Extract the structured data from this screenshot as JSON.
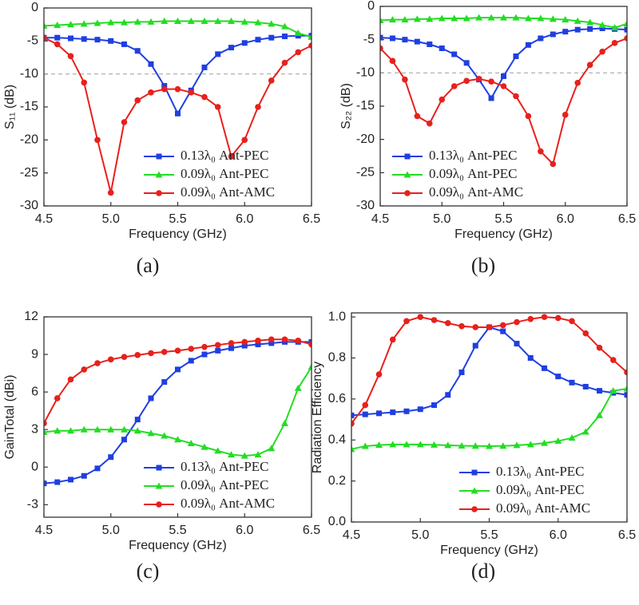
{
  "chart_data": [
    {
      "type": "line",
      "panel_label": "(a)",
      "xlabel": "Frequency (GHz)",
      "ylabel": "S₁₁ (dB)",
      "x": [
        4.5,
        4.6,
        4.7,
        4.8,
        4.9,
        5.0,
        5.1,
        5.2,
        5.3,
        5.4,
        5.5,
        5.6,
        5.7,
        5.8,
        5.9,
        6.0,
        6.1,
        6.2,
        6.3,
        6.4,
        6.5
      ],
      "xlim": [
        4.5,
        6.5
      ],
      "xticks": [
        4.5,
        {
          "value": 5,
          "label": "5.0"
        },
        5.5,
        {
          "value": 6,
          "label": "6.0"
        },
        6.5
      ],
      "ylim": [
        -30,
        0
      ],
      "yticks": [
        -30,
        -25,
        -20,
        -15,
        -10,
        -5,
        0
      ],
      "ref_line": -10,
      "legend": "lower right",
      "series": [
        {
          "name": "0.13λ₀ Ant-PEC",
          "color": "#1f3fe0",
          "marker": "square",
          "values": [
            -4.5,
            -4.5,
            -4.6,
            -4.7,
            -4.8,
            -5.0,
            -5.5,
            -6.5,
            -8.5,
            -11.8,
            -16,
            -12.5,
            -9,
            -7,
            -6,
            -5.3,
            -4.8,
            -4.5,
            -4.3,
            -4.2,
            -4.2
          ]
        },
        {
          "name": "0.09λ₀ Ant-PEC",
          "color": "#22dd22",
          "marker": "triangle",
          "values": [
            -2.7,
            -2.6,
            -2.5,
            -2.4,
            -2.3,
            -2.2,
            -2.2,
            -2.1,
            -2.1,
            -2.0,
            -2.0,
            -2.0,
            -2.0,
            -2.0,
            -2.0,
            -2.1,
            -2.2,
            -2.4,
            -2.8,
            -3.8,
            -4.4
          ]
        },
        {
          "name": "0.09λ₀ Ant-AMC",
          "color": "#e8201c",
          "marker": "circle",
          "values": [
            -4.5,
            -5.5,
            -7.3,
            -11.3,
            -20,
            -28,
            -17.3,
            -14,
            -12.8,
            -12.3,
            -12.3,
            -12.8,
            -13.5,
            -15,
            -22.5,
            -20,
            -15,
            -11,
            -8.3,
            -6.7,
            -5.7
          ]
        }
      ]
    },
    {
      "type": "line",
      "panel_label": "(b)",
      "xlabel": "Frequency (GHz)",
      "ylabel": "S₂₂ (dB)",
      "x": [
        4.5,
        4.6,
        4.7,
        4.8,
        4.9,
        5.0,
        5.1,
        5.2,
        5.3,
        5.4,
        5.5,
        5.6,
        5.7,
        5.8,
        5.9,
        6.0,
        6.1,
        6.2,
        6.3,
        6.4,
        6.5
      ],
      "xlim": [
        4.5,
        6.5
      ],
      "xticks": [
        4.5,
        {
          "value": 5,
          "label": "5.0"
        },
        5.5,
        {
          "value": 6,
          "label": "6.0"
        },
        6.5
      ],
      "ylim": [
        -30,
        0
      ],
      "yticks": [
        -30,
        -25,
        -20,
        -15,
        -10,
        -5,
        0
      ],
      "ref_line": -10,
      "legend": "lower left",
      "series": [
        {
          "name": "0.13λ₀ Ant-PEC",
          "color": "#1f3fe0",
          "marker": "square",
          "values": [
            -4.7,
            -4.8,
            -5.0,
            -5.3,
            -5.7,
            -6.3,
            -7.2,
            -8.5,
            -11,
            -13.8,
            -10.5,
            -7.5,
            -5.8,
            -4.8,
            -4.2,
            -3.8,
            -3.5,
            -3.4,
            -3.3,
            -3.4,
            -3.5
          ]
        },
        {
          "name": "0.09λ₀ Ant-PEC",
          "color": "#22dd22",
          "marker": "triangle",
          "values": [
            -2.1,
            -2.0,
            -2.0,
            -1.9,
            -1.9,
            -1.8,
            -1.8,
            -1.8,
            -1.7,
            -1.7,
            -1.7,
            -1.7,
            -1.8,
            -1.8,
            -1.9,
            -2.0,
            -2.2,
            -2.4,
            -2.8,
            -3.2,
            -2.6
          ]
        },
        {
          "name": "0.09λ₀ Ant-AMC",
          "color": "#e8201c",
          "marker": "circle",
          "values": [
            -6.3,
            -8.2,
            -11,
            -16.5,
            -17.6,
            -14,
            -12,
            -11.2,
            -10.9,
            -11.3,
            -12,
            -13.5,
            -16.5,
            -21.8,
            -23.7,
            -16.3,
            -11.5,
            -8.8,
            -6.8,
            -5.5,
            -4.8
          ]
        }
      ]
    },
    {
      "type": "line",
      "panel_label": "(c)",
      "xlabel": "Frequency (GHz)",
      "ylabel": "GainTotal (dBi)",
      "x": [
        4.5,
        4.6,
        4.7,
        4.8,
        4.9,
        5.0,
        5.1,
        5.2,
        5.3,
        5.4,
        5.5,
        5.6,
        5.7,
        5.8,
        5.9,
        6.0,
        6.1,
        6.2,
        6.3,
        6.4,
        6.5
      ],
      "xlim": [
        4.5,
        6.5
      ],
      "xticks": [
        4.5,
        {
          "value": 5,
          "label": "5.0"
        },
        5.5,
        {
          "value": 6,
          "label": "6.0"
        },
        6.5
      ],
      "ylim": [
        -4,
        12
      ],
      "yticks": [
        -3,
        0,
        3,
        6,
        9,
        12
      ],
      "legend": "lower right",
      "series": [
        {
          "name": "0.13λ₀ Ant-PEC",
          "color": "#1f3fe0",
          "marker": "square",
          "values": [
            -1.3,
            -1.2,
            -1.0,
            -0.7,
            -0.1,
            0.8,
            2.2,
            3.8,
            5.5,
            6.8,
            7.8,
            8.5,
            9.0,
            9.3,
            9.5,
            9.7,
            9.8,
            9.9,
            10.0,
            10.0,
            10.0
          ]
        },
        {
          "name": "0.09λ₀ Ant-PEC",
          "color": "#22dd22",
          "marker": "triangle",
          "values": [
            2.8,
            2.9,
            2.9,
            3.0,
            3.0,
            3.0,
            3.0,
            2.9,
            2.7,
            2.5,
            2.2,
            1.9,
            1.6,
            1.3,
            1.0,
            0.9,
            1.0,
            1.5,
            3.5,
            6.3,
            8.0
          ]
        },
        {
          "name": "0.09λ₀ Ant-AMC",
          "color": "#e8201c",
          "marker": "circle",
          "values": [
            3.5,
            5.5,
            7.0,
            7.8,
            8.3,
            8.6,
            8.8,
            8.95,
            9.1,
            9.2,
            9.3,
            9.45,
            9.6,
            9.75,
            9.9,
            10.0,
            10.1,
            10.2,
            10.2,
            10.1,
            9.8
          ]
        }
      ]
    },
    {
      "type": "line",
      "panel_label": "(d)",
      "xlabel": "Frequency (GHz)",
      "ylabel": "Radiation Efficiency",
      "x": [
        4.5,
        4.6,
        4.7,
        4.8,
        4.9,
        5.0,
        5.1,
        5.2,
        5.3,
        5.4,
        5.5,
        5.6,
        5.7,
        5.8,
        5.9,
        6.0,
        6.1,
        6.2,
        6.3,
        6.4,
        6.5
      ],
      "xlim": [
        4.5,
        6.5
      ],
      "xticks": [
        4.5,
        {
          "value": 5,
          "label": "5.0"
        },
        5.5,
        {
          "value": 6,
          "label": "6.0"
        },
        6.5
      ],
      "ylim": [
        0,
        1.02
      ],
      "yticks": [
        {
          "value": 0,
          "label": "0.0"
        },
        0.2,
        0.4,
        0.6,
        0.8,
        {
          "value": 1,
          "label": "1.0"
        }
      ],
      "legend": "lower right",
      "series": [
        {
          "name": "0.13λ₀ Ant-PEC",
          "color": "#1f3fe0",
          "marker": "square",
          "values": [
            0.52,
            0.525,
            0.53,
            0.535,
            0.54,
            0.55,
            0.57,
            0.62,
            0.73,
            0.86,
            0.95,
            0.93,
            0.87,
            0.8,
            0.75,
            0.71,
            0.68,
            0.66,
            0.64,
            0.63,
            0.62
          ]
        },
        {
          "name": "0.09λ₀ Ant-PEC",
          "color": "#22dd22",
          "marker": "triangle",
          "values": [
            0.355,
            0.37,
            0.375,
            0.378,
            0.378,
            0.378,
            0.376,
            0.374,
            0.372,
            0.371,
            0.37,
            0.371,
            0.374,
            0.378,
            0.385,
            0.395,
            0.41,
            0.44,
            0.52,
            0.64,
            0.65
          ]
        },
        {
          "name": "0.09λ₀ Ant-AMC",
          "color": "#e8201c",
          "marker": "circle",
          "values": [
            0.48,
            0.57,
            0.72,
            0.89,
            0.98,
            1.0,
            0.985,
            0.97,
            0.955,
            0.95,
            0.95,
            0.96,
            0.975,
            0.99,
            1.0,
            0.995,
            0.98,
            0.92,
            0.85,
            0.79,
            0.73
          ]
        }
      ]
    }
  ]
}
